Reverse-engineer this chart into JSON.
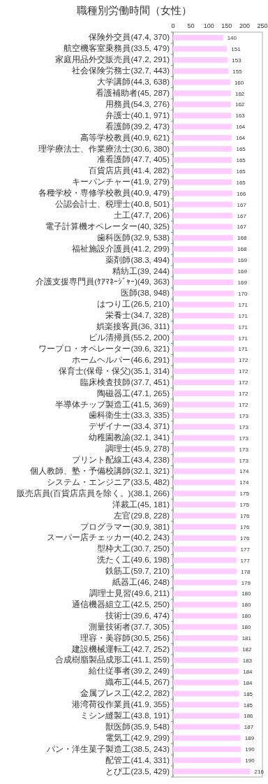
{
  "chart_data": {
    "type": "bar",
    "orientation": "horizontal",
    "title": "職種別労働時間（女性）",
    "categories": [
      "保険外交員(47.4, 370)",
      "航空機客室乗務員(33.5, 479)",
      "家庭用品外交販売員(47.2, 291)",
      "社会保険労務士(32.7, 443)",
      "大学講師(44.3, 638)",
      "看護補助者(45, 287)",
      "用務員(54.3, 276)",
      "弁護士(40.1, 971)",
      "看護師(39.2, 473)",
      "高等学校教員(40.9, 621)",
      "理学療法士、作業療法士(30.6, 380)",
      "准看護師(47.7, 405)",
      "百貨店店員(41.4, 282)",
      "キーパンチャー(41.9, 279)",
      "各種学校・専修学校教員(40.9, 479)",
      "公認会計士、税理士(40.8, 501)",
      "土工(47.7, 206)",
      "電子計算機オペレーター(40, 325)",
      "歯科医師(32.9, 538)",
      "福祉施設介護員(41.2, 299)",
      "薬剤師(38.3, 494)",
      "精紡工(39, 244)",
      "介護支援専門員(ｹｱﾏﾈｰｼﾞｬｰ)(49, 363)",
      "医師(38, 948)",
      "はつり工(26.5, 210)",
      "栄養士(34.7, 328)",
      "娯楽接客員(36, 311)",
      "ビル清掃員(55.2, 200)",
      "ワープロ・オペレーター(39.6, 321)",
      "ホームヘルパー(46.6, 291)",
      "保育士(保母・保父)(35.1, 314)",
      "臨床検査技師(37.7, 451)",
      "陶磁器工(47.1, 265)",
      "半導体チップ製造工(41.5, 369)",
      "歯科衛生士(33.3, 335)",
      "デザイナー(33.4, 371)",
      "幼稚園教諭(32.1, 341)",
      "調理士(45.9, 278)",
      "プリント配線工(43.4, 238)",
      "個人教師、塾・予備校講師(32.1, 321)",
      "システム・エンジニア(33.5, 482)",
      "販売店員(百貨店店員を除く。)(38.1, 266)",
      "洋裁工(45, 181)",
      "左官(29.8, 228)",
      "プログラマー(30.9, 381)",
      "スーパー店チェッカー(40.2, 243)",
      "型枠大工(30.7, 250)",
      "洗たく工(49.6, 198)",
      "鉄筋工(59.7, 210)",
      "紙器工(46, 248)",
      "調理士見習(49.6, 211)",
      "通信機器組立工(42.5, 250)",
      "技術士(39.6, 474)",
      "測量技術者(37.7, 305)",
      "理容・美容師(30.5, 256)",
      "建設機械運転工(42.7, 252)",
      "合成樹脂製品成形工(41.1, 259)",
      "給仕従事者(39.2, 249)",
      "織布工(44.5, 267)",
      "金属プレス工(42.2, 282)",
      "港湾荷役作業員(41.9, 355)",
      "ミシン縫製工(43.8, 191)",
      "獣医師(35.9, 548)",
      "電気工(42.9, 299)",
      "パン・洋生菓子製造工(38.5, 243)",
      "配管工(41.4, 331)",
      "とび工(23.5, 429)"
    ],
    "values": [
      140,
      151,
      153,
      155,
      160,
      162,
      162,
      163,
      164,
      164,
      165,
      165,
      165,
      165,
      166,
      167,
      167,
      167,
      168,
      168,
      169,
      169,
      169,
      170,
      171,
      171,
      171,
      171,
      171,
      172,
      172,
      172,
      172,
      172,
      173,
      173,
      173,
      173,
      173,
      174,
      174,
      175,
      175,
      176,
      176,
      176,
      177,
      177,
      178,
      179,
      180,
      180,
      180,
      180,
      181,
      182,
      183,
      184,
      184,
      185,
      185,
      186,
      187,
      189,
      190,
      190,
      216
    ],
    "color": "#ffccff",
    "xlim": [
      0,
      250
    ],
    "xticks": [
      0,
      50,
      100,
      150,
      200,
      250
    ],
    "data_labels": true
  }
}
